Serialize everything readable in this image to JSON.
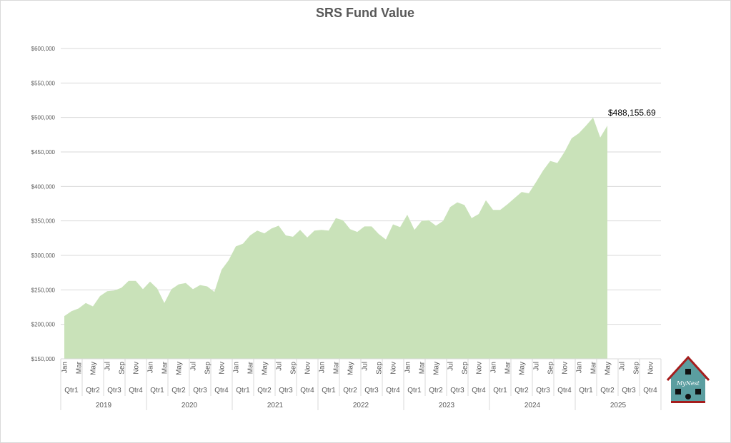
{
  "chart_data": {
    "type": "area",
    "title": "SRS Fund Value",
    "xlabel": "",
    "ylabel": "",
    "ylim": [
      150000,
      600000
    ],
    "y_ticks": [
      150000,
      200000,
      250000,
      300000,
      350000,
      400000,
      450000,
      500000,
      550000,
      600000
    ],
    "y_tick_labels": [
      "$150,000",
      "$200,000",
      "$250,000",
      "$300,000",
      "$350,000",
      "$400,000",
      "$450,000",
      "$500,000",
      "$550,000",
      "$600,000"
    ],
    "grid": true,
    "legend": "none",
    "series_color": "#c9e2b9",
    "years": [
      "2019",
      "2020",
      "2021",
      "2022",
      "2023",
      "2024",
      "2025"
    ],
    "quarters": [
      "Qtr1",
      "Qtr2",
      "Qtr3",
      "Qtr4"
    ],
    "month_labels": [
      "Jan",
      "Mar",
      "May",
      "Jul",
      "Sep",
      "Nov"
    ],
    "series": [
      {
        "name": "SRS Fund Value",
        "values": [
          212000,
          219000,
          223000,
          231000,
          226000,
          241000,
          248000,
          249000,
          253000,
          263000,
          263000,
          251000,
          262000,
          252000,
          231000,
          251000,
          258000,
          260000,
          251000,
          257000,
          255000,
          247000,
          279000,
          293000,
          313000,
          317000,
          329000,
          336000,
          332000,
          339000,
          343000,
          329000,
          327000,
          337000,
          326000,
          336000,
          337000,
          336000,
          354000,
          351000,
          338000,
          334000,
          342000,
          342000,
          331000,
          323000,
          345000,
          341000,
          359000,
          337000,
          350000,
          351000,
          343000,
          350000,
          370000,
          377000,
          373000,
          354000,
          360000,
          380000,
          366000,
          366000,
          374000,
          383000,
          392000,
          390000,
          406000,
          423000,
          437000,
          434000,
          450000,
          470000,
          477000,
          488000,
          500000,
          471000,
          488155.69
        ]
      }
    ],
    "data_label": "$488,155.69"
  },
  "logo": {
    "text": "MyNest"
  }
}
